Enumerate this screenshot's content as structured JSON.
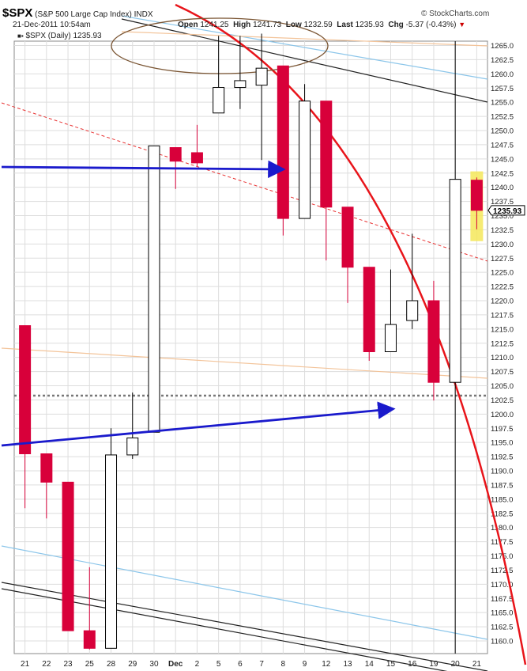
{
  "header": {
    "symbol": "$SPX",
    "name": "(S&P 500 Large Cap Index)",
    "exchange": "INDX",
    "brand": "© StockCharts.com",
    "date": "21-Dec-2011 10:54am",
    "open_label": "Open",
    "open_value": "1241.25",
    "high_label": "High",
    "high_value": "1241.73",
    "low_label": "Low",
    "low_value": "1232.59",
    "last_label": "Last",
    "last_value": "1235.93",
    "chg_label": "Chg",
    "chg_value": "-5.37 (-0.43%)",
    "legend_text": "$SPX (Daily) 1235.93",
    "last_price_tag": "1235.93"
  },
  "chart_data": {
    "type": "candlestick",
    "ylim": [
      1158,
      1270
    ],
    "y_ticks": [
      1160,
      1162.5,
      1165,
      1167.5,
      1170,
      1172.5,
      1175,
      1177.5,
      1180,
      1182.5,
      1185,
      1187.5,
      1190,
      1192.5,
      1195,
      1197.5,
      1200,
      1202.5,
      1205,
      1207.5,
      1210,
      1212.5,
      1215,
      1217.5,
      1220,
      1222.5,
      1225,
      1227.5,
      1230,
      1232.5,
      1235,
      1237.5,
      1240,
      1242.5,
      1245,
      1247.5,
      1250,
      1252.5,
      1255,
      1257.5,
      1260,
      1262.5,
      1265
    ],
    "categories": [
      "21",
      "22",
      "23",
      "25",
      "28",
      "29",
      "30",
      "Dec",
      "2",
      "5",
      "6",
      "7",
      "8",
      "9",
      "12",
      "13",
      "14",
      "15",
      "16",
      "19",
      "20",
      "21"
    ],
    "candles": [
      {
        "o": 1215.6,
        "h": 1215.6,
        "l": 1183.4,
        "c": 1193.0
      },
      {
        "o": 1193.0,
        "h": 1193.0,
        "l": 1181.6,
        "c": 1188.0
      },
      {
        "o": 1188.0,
        "h": 1188.0,
        "l": 1161.8,
        "c": 1161.8
      },
      {
        "o": 1161.8,
        "h": 1173.0,
        "l": 1158.5,
        "c": 1158.7
      },
      {
        "o": 1158.7,
        "h": 1197.5,
        "l": 1158.7,
        "c": 1192.8
      },
      {
        "o": 1192.8,
        "h": 1203.8,
        "l": 1192.1,
        "c": 1195.8
      },
      {
        "o": 1196.8,
        "h": 1247.3,
        "l": 1196.8,
        "c": 1247.3
      },
      {
        "o": 1247.0,
        "h": 1247.0,
        "l": 1239.7,
        "c": 1244.6
      },
      {
        "o": 1246.1,
        "h": 1251.0,
        "l": 1243.6,
        "c": 1244.3
      },
      {
        "o": 1253.1,
        "h": 1266.7,
        "l": 1253.1,
        "c": 1257.6
      },
      {
        "o": 1257.6,
        "h": 1266.7,
        "l": 1253.8,
        "c": 1258.8
      },
      {
        "o": 1258.0,
        "h": 1267.1,
        "l": 1244.8,
        "c": 1261.0
      },
      {
        "o": 1261.4,
        "h": 1261.4,
        "l": 1231.5,
        "c": 1234.5
      },
      {
        "o": 1234.5,
        "h": 1258.2,
        "l": 1234.5,
        "c": 1255.2
      },
      {
        "o": 1255.2,
        "h": 1255.2,
        "l": 1227.1,
        "c": 1236.5
      },
      {
        "o": 1236.5,
        "h": 1236.5,
        "l": 1219.6,
        "c": 1225.9
      },
      {
        "o": 1225.9,
        "h": 1225.9,
        "l": 1209.4,
        "c": 1211.0
      },
      {
        "o": 1211.0,
        "h": 1225.5,
        "l": 1211.0,
        "c": 1215.8
      },
      {
        "o": 1216.5,
        "h": 1231.8,
        "l": 1215.0,
        "c": 1220.0
      },
      {
        "o": 1220.0,
        "h": 1223.5,
        "l": 1202.4,
        "c": 1205.6
      },
      {
        "o": 1205.6,
        "h": 1241.5,
        "l": 1205.6,
        "c": 1241.4
      },
      {
        "o": 1241.25,
        "h": 1241.73,
        "l": 1232.59,
        "c": 1235.93
      }
    ],
    "grid": true
  },
  "colors": {
    "up_body": "#ffffff",
    "down_body": "#d8003a",
    "outline": "#000000",
    "blue_arrow": "#1a1acc",
    "red_curve": "#e8141a",
    "red_dashed": "#e83232",
    "light_blue": "#8cc6ea",
    "orange": "#f3c49a",
    "brown": "#7a5533",
    "highlight": "#f5e85a",
    "dotted_line": "#777777"
  }
}
